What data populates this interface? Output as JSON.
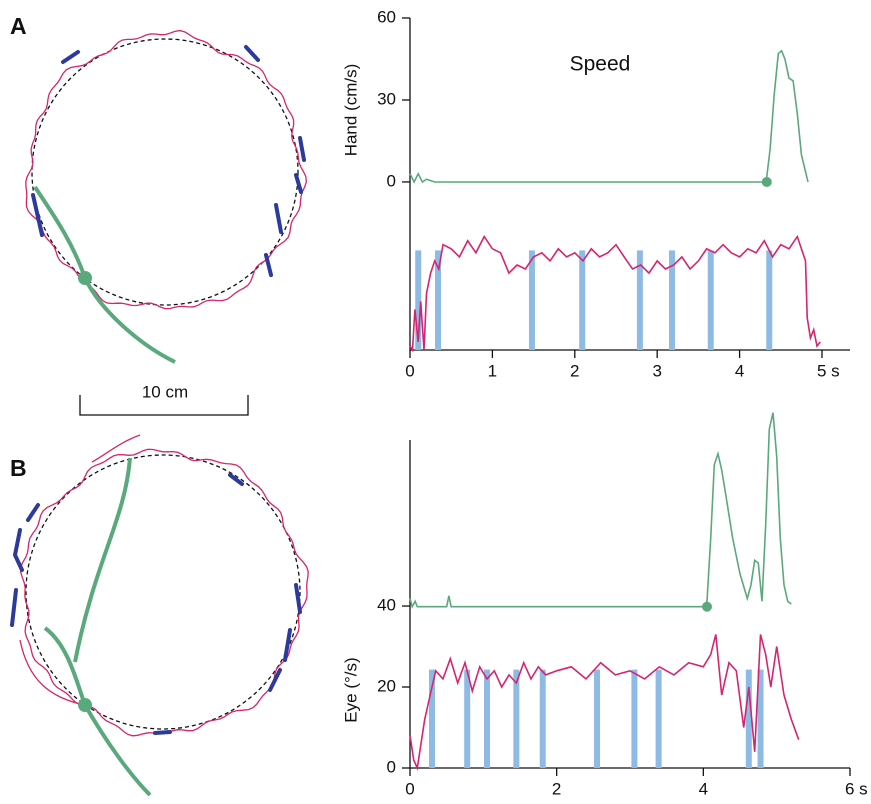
{
  "panel_labels": [
    "A",
    "B"
  ],
  "scale_bar_label": "10 cm",
  "chart_data": [
    {
      "type": "line",
      "title": "Speed",
      "ylabel": "Hand (cm/s)",
      "xlim": [
        0,
        5.34
      ],
      "xticks": [
        0,
        1,
        2,
        3,
        4,
        {
          "value": 5,
          "label": "5 s"
        }
      ],
      "ylim": [
        -61.5,
        60
      ],
      "yticks": [
        0,
        30,
        60
      ],
      "y2lim": [
        0,
        82
      ],
      "series": [
        {
          "color": "#5aa97c",
          "onset": 4.33,
          "x": [
            0,
            0.05,
            0.1,
            0.15,
            0.2,
            0.3,
            1,
            2,
            3,
            4,
            4.3,
            4.33,
            4.37,
            4.42,
            4.47,
            4.51,
            4.55,
            4.6,
            4.65,
            4.7,
            4.75,
            4.83
          ],
          "values": [
            3,
            0,
            3,
            0,
            1,
            0,
            0,
            0,
            0,
            0,
            0,
            2,
            12,
            32,
            47,
            48,
            45,
            38,
            37,
            25,
            10,
            0
          ]
        },
        {
          "color": "#d6246e",
          "axis": "y2",
          "x": [
            0,
            0.03,
            0.06,
            0.1,
            0.13,
            0.17,
            0.2,
            0.25,
            0.3,
            0.35,
            0.4,
            0.5,
            0.6,
            0.7,
            0.8,
            0.9,
            1.0,
            1.1,
            1.2,
            1.3,
            1.4,
            1.5,
            1.6,
            1.7,
            1.8,
            1.9,
            2.0,
            2.1,
            2.2,
            2.3,
            2.4,
            2.5,
            2.6,
            2.7,
            2.8,
            2.9,
            3.0,
            3.1,
            3.2,
            3.3,
            3.4,
            3.5,
            3.6,
            3.7,
            3.8,
            3.9,
            4.0,
            4.1,
            4.2,
            4.3,
            4.4,
            4.5,
            4.6,
            4.7,
            4.8,
            4.82,
            4.86,
            4.9,
            4.94,
            4.98
          ],
          "values": [
            1,
            0,
            10,
            2,
            12,
            0,
            14,
            19,
            22,
            20,
            26,
            25,
            23,
            27,
            24,
            28,
            25,
            24,
            19,
            21,
            20,
            23,
            24,
            22,
            25,
            23,
            24,
            22,
            25,
            23,
            24,
            26,
            23,
            20,
            21,
            19,
            22,
            20,
            21,
            23,
            20,
            22,
            25,
            24,
            26,
            24,
            23,
            25,
            24,
            27,
            23,
            26,
            25,
            28,
            22,
            8,
            3,
            5,
            1,
            2
          ]
        }
      ],
      "events": {
        "color": "#8dbbe6",
        "x": [
          0.1,
          0.34,
          1.48,
          2.09,
          2.79,
          3.18,
          3.65,
          4.36
        ]
      }
    },
    {
      "type": "line",
      "ylabel": "Eye (°/s)",
      "xlim": [
        0,
        6
      ],
      "xticks": [
        0,
        2,
        4,
        {
          "value": 6,
          "label": "6 s"
        }
      ],
      "ylim": [
        0,
        81
      ],
      "yticks": [
        0,
        20,
        40
      ],
      "y2lim": [
        -59,
        61
      ],
      "series": [
        {
          "color": "#5aa97c",
          "axis": "y2",
          "onset": 4.05,
          "x": [
            0,
            0.03,
            0.07,
            0.1,
            0.3,
            0.5,
            0.53,
            0.56,
            0.6,
            1,
            2,
            3,
            4,
            4.05,
            4.1,
            4.15,
            4.2,
            4.25,
            4.3,
            4.4,
            4.5,
            4.6,
            4.65,
            4.7,
            4.75,
            4.8,
            4.85,
            4.9,
            4.95,
            5.0,
            5.05,
            5.1,
            5.15,
            5.2
          ],
          "values": [
            3,
            0,
            2,
            0,
            0,
            0,
            4,
            0,
            0,
            0,
            0,
            0,
            0,
            2,
            25,
            52,
            56,
            50,
            42,
            25,
            12,
            3,
            8,
            17,
            16,
            2,
            30,
            65,
            71,
            55,
            25,
            8,
            2,
            1
          ]
        },
        {
          "color": "#d6246e",
          "x": [
            0,
            0.05,
            0.1,
            0.2,
            0.3,
            0.35,
            0.45,
            0.55,
            0.65,
            0.75,
            0.85,
            0.95,
            1.05,
            1.15,
            1.25,
            1.35,
            1.45,
            1.55,
            1.65,
            1.75,
            1.85,
            2.0,
            2.2,
            2.4,
            2.6,
            2.8,
            3.0,
            3.2,
            3.4,
            3.6,
            3.8,
            4.0,
            4.1,
            4.17,
            4.25,
            4.35,
            4.45,
            4.55,
            4.62,
            4.7,
            4.78,
            4.85,
            4.92,
            5.0,
            5.1,
            5.2,
            5.3
          ],
          "values": [
            8,
            2,
            0,
            12,
            20,
            24,
            22,
            27,
            21,
            26,
            19,
            25,
            22,
            24,
            20,
            23,
            21,
            26,
            22,
            25,
            23,
            24,
            25,
            22,
            26,
            23,
            24,
            22,
            25,
            23,
            26,
            25,
            28,
            33,
            18,
            26,
            24,
            10,
            20,
            4,
            33,
            28,
            20,
            30,
            18,
            12,
            7
          ]
        }
      ],
      "events": {
        "color": "#8dbbe6",
        "x": [
          0.3,
          0.78,
          1.05,
          1.45,
          1.81,
          2.55,
          3.06,
          3.39,
          4.62,
          4.78
        ]
      }
    }
  ]
}
